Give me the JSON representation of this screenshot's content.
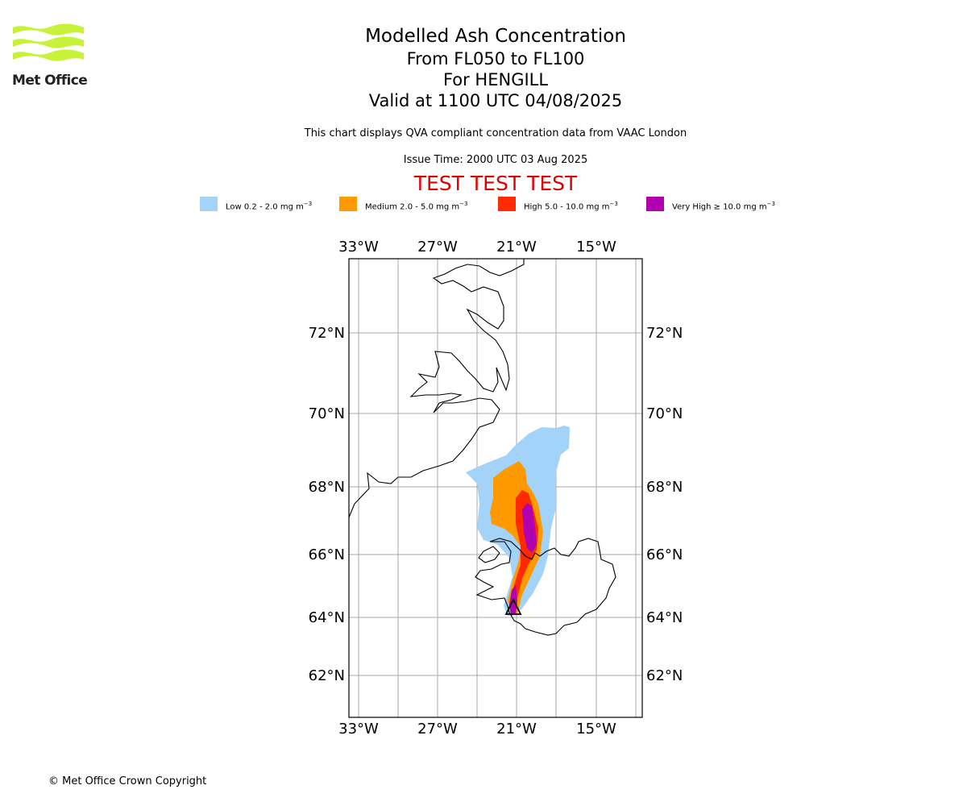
{
  "header": {
    "logo_text": "Met Office",
    "title": "Modelled Ash Concentration",
    "level_range": "From FL050 to FL100",
    "location_line": "For HENGILL",
    "valid_line": "Valid at 1100 UTC 04/08/2025",
    "compliance_note": "This chart displays QVA compliant concentration data from VAAC London",
    "issue_time": "Issue Time: 2000 UTC 03 Aug 2025",
    "test_banner": "TEST TEST TEST"
  },
  "legend": [
    {
      "label": "Low 0.2 - 2.0 mg m",
      "color": "#a3d3f9"
    },
    {
      "label": "Medium 2.0 - 5.0 mg m",
      "color": "#ff9900"
    },
    {
      "label": "High 5.0 - 10.0 mg m",
      "color": "#ff2a00"
    },
    {
      "label": "Very High ≥ 10.0 mg m",
      "color": "#b000b0"
    }
  ],
  "legend_unit_exponent": "−3",
  "map": {
    "lon_ticks": [
      "33°W",
      "27°W",
      "21°W",
      "15°W"
    ],
    "lat_ticks": [
      "72°N",
      "70°N",
      "68°N",
      "66°N",
      "64°N",
      "62°N"
    ],
    "volcano_marker": "triangle-icon",
    "colors": {
      "coastline": "#000000",
      "grid": "#aaaaaa"
    }
  },
  "footer": {
    "copyright": "© Met Office Crown Copyright"
  }
}
